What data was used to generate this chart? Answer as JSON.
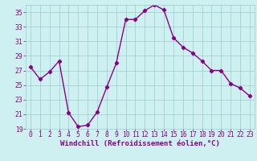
{
  "x": [
    0,
    1,
    2,
    3,
    4,
    5,
    6,
    7,
    8,
    9,
    10,
    11,
    12,
    13,
    14,
    15,
    16,
    17,
    18,
    19,
    20,
    21,
    22,
    23
  ],
  "y": [
    27.5,
    25.8,
    26.8,
    28.3,
    21.2,
    19.3,
    19.5,
    21.3,
    24.7,
    28.0,
    34.0,
    34.0,
    35.2,
    36.0,
    35.3,
    31.5,
    30.2,
    29.4,
    28.3,
    27.0,
    27.0,
    25.2,
    24.6,
    23.5
  ],
  "line_color": "#880088",
  "marker": "D",
  "markersize": 2.2,
  "linewidth": 1.0,
  "bg_color": "#cff0f0",
  "grid_color": "#99cccc",
  "xlabel": "Windchill (Refroidissement éolien,°C)",
  "xlabel_color": "#880088",
  "xlabel_fontsize": 6.5,
  "tick_fontsize": 5.8,
  "tick_color": "#880088",
  "ylim": [
    19,
    36
  ],
  "yticks": [
    19,
    21,
    23,
    25,
    27,
    29,
    31,
    33,
    35
  ],
  "xlim": [
    -0.5,
    23.5
  ],
  "xticks": [
    0,
    1,
    2,
    3,
    4,
    5,
    6,
    7,
    8,
    9,
    10,
    11,
    12,
    13,
    14,
    15,
    16,
    17,
    18,
    19,
    20,
    21,
    22,
    23
  ]
}
